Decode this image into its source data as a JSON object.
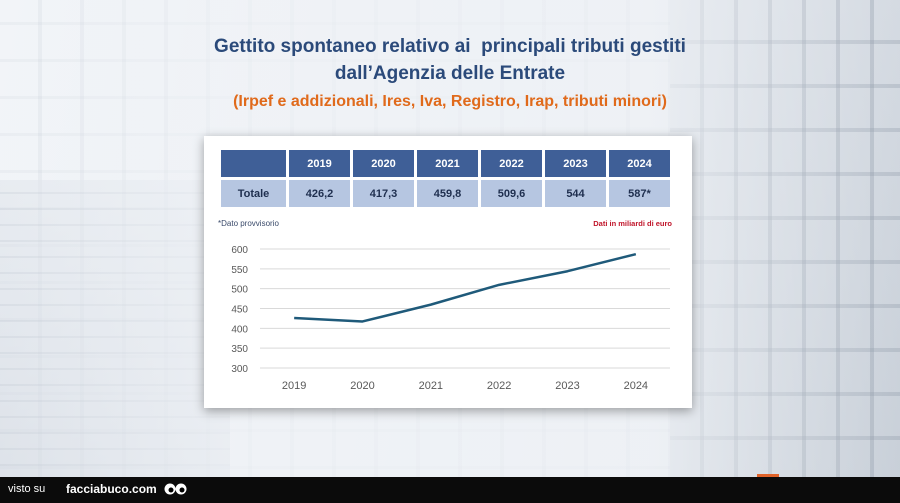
{
  "header": {
    "title_line1": "Gettito spontaneo relativo ai  principali tributi gestiti",
    "title_line2": "dall’Agenzia delle Entrate",
    "subtitle": "(Irpef e addizionali, Ires, Iva, Registro, Irap, tributi minori)"
  },
  "table": {
    "years": [
      "2019",
      "2020",
      "2021",
      "2022",
      "2023",
      "2024"
    ],
    "row_label": "Totale",
    "values": [
      "426,2",
      "417,3",
      "459,8",
      "509,6",
      "544",
      "587*"
    ]
  },
  "note": "*Dato provvisorio",
  "units_note": "Dati in miliardi di euro",
  "chart_data": {
    "type": "line",
    "categories": [
      "2019",
      "2020",
      "2021",
      "2022",
      "2023",
      "2024"
    ],
    "series": [
      {
        "values": [
          426.2,
          417.3,
          459.8,
          509.6,
          544,
          587
        ]
      }
    ],
    "yticks": [
      300,
      350,
      400,
      450,
      500,
      550,
      600
    ],
    "ylim": [
      300,
      600
    ],
    "grid": true,
    "colors": {
      "line": "#1f5a7a",
      "grid": "#d9d9d9",
      "tick_text": "#595959"
    }
  },
  "footer": {
    "visto": "visto su",
    "site": "facciabuco.com"
  }
}
